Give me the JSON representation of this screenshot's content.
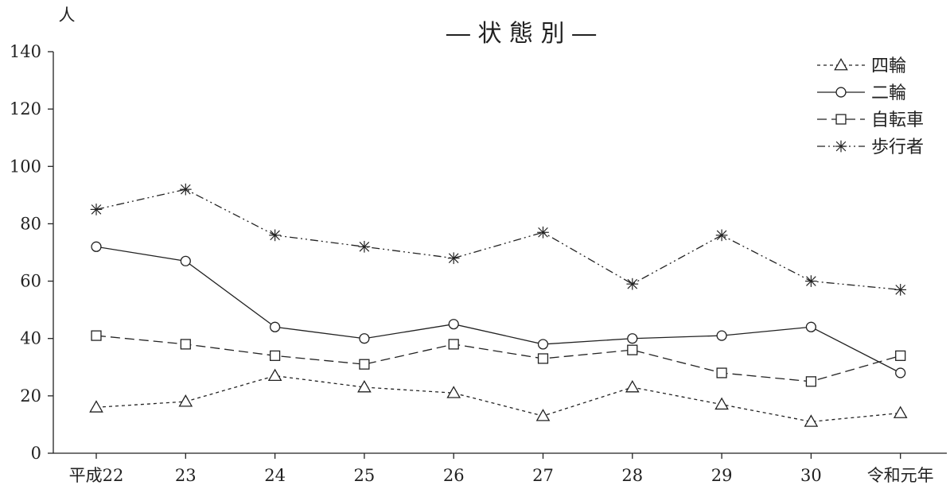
{
  "chart_data": {
    "type": "line",
    "title": "― 状 態 別 ―",
    "ylabel": "人",
    "xlabel": "",
    "categories": [
      "平成22",
      "23",
      "24",
      "25",
      "26",
      "27",
      "28",
      "29",
      "30",
      "令和元年"
    ],
    "ylim": [
      0,
      140
    ],
    "yticks": [
      0,
      20,
      40,
      60,
      80,
      100,
      120,
      140
    ],
    "grid": false,
    "legend_position": "top-right",
    "series": [
      {
        "name": "四輪",
        "marker": "triangle",
        "dash": "short-dash",
        "values": [
          16,
          18,
          27,
          23,
          21,
          13,
          23,
          17,
          11,
          14
        ]
      },
      {
        "name": "二輪",
        "marker": "circle",
        "dash": "solid",
        "values": [
          72,
          67,
          44,
          40,
          45,
          38,
          40,
          41,
          44,
          28
        ]
      },
      {
        "name": "自転車",
        "marker": "square",
        "dash": "long-dash",
        "values": [
          41,
          38,
          34,
          31,
          38,
          33,
          36,
          28,
          25,
          34
        ]
      },
      {
        "name": "歩行者",
        "marker": "asterisk",
        "dash": "dash-dot-dot",
        "values": [
          85,
          92,
          76,
          72,
          68,
          77,
          59,
          76,
          60,
          57
        ]
      }
    ]
  }
}
